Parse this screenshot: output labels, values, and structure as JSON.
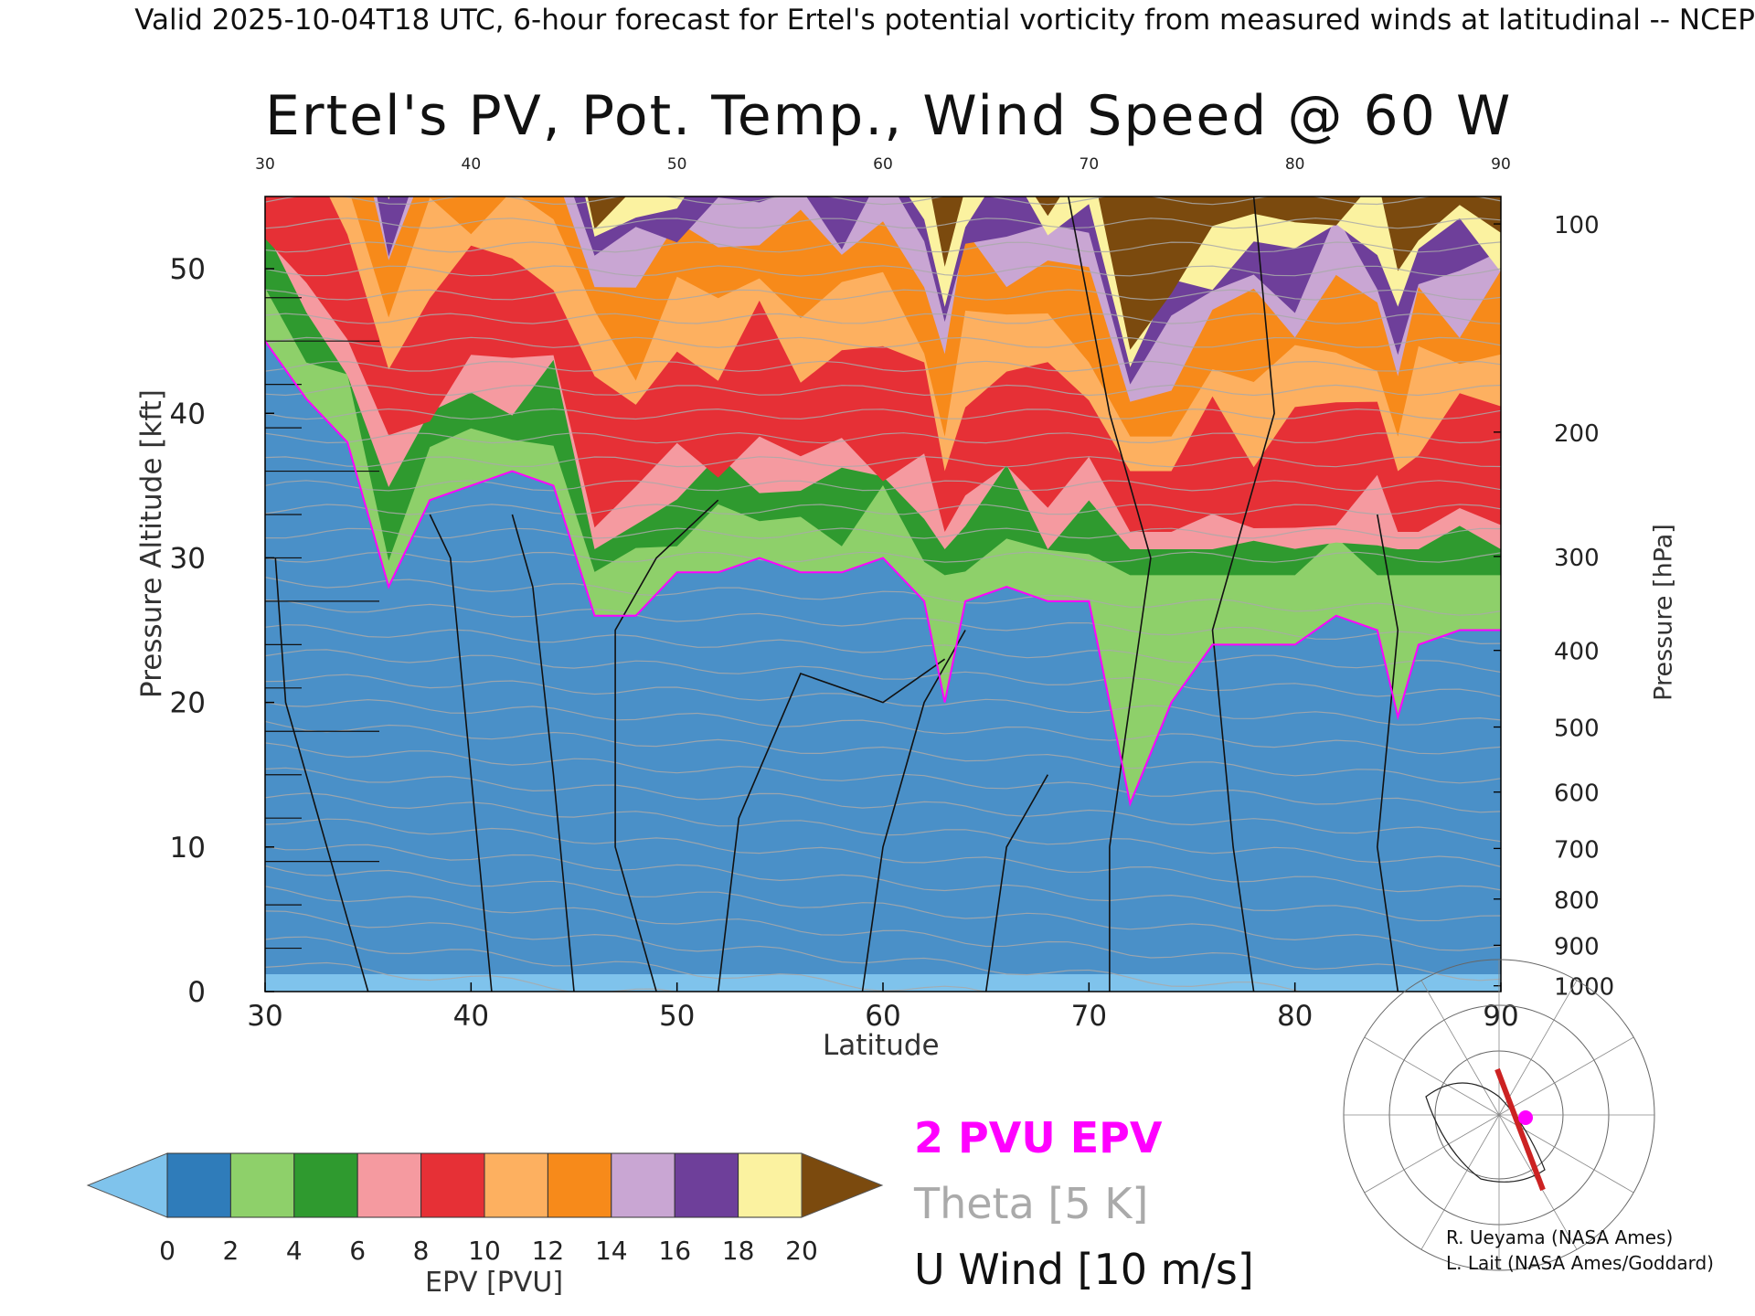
{
  "header": {
    "valid_line": "Valid 2025-10-04T18 UTC, 6-hour forecast for Ertel's potential vorticity from measured winds at latitudinal -- NCEP"
  },
  "chart_data": {
    "type": "heatmap",
    "title": "Ertel's PV, Pot. Temp., Wind Speed @ 60 W",
    "xlabel": "Latitude",
    "ylabel_left": "Pressure Altitude [kft]",
    "ylabel_right": "Pressure [hPa]",
    "xlim": [
      30,
      90
    ],
    "ylim": [
      0,
      55
    ],
    "x_ticks": [
      "30",
      "40",
      "50",
      "60",
      "70",
      "80",
      "90"
    ],
    "top_ticks": [
      "30",
      "40",
      "50",
      "60",
      "70",
      "80",
      "90"
    ],
    "y_ticks": [
      "0",
      "10",
      "20",
      "30",
      "40",
      "50"
    ],
    "pressure_ticks": [
      {
        "label": "100",
        "kft": 53.1
      },
      {
        "label": "200",
        "kft": 38.7
      },
      {
        "label": "300",
        "kft": 30.1
      },
      {
        "label": "400",
        "kft": 23.6
      },
      {
        "label": "500",
        "kft": 18.3
      },
      {
        "label": "600",
        "kft": 13.8
      },
      {
        "label": "700",
        "kft": 9.9
      },
      {
        "label": "800",
        "kft": 6.4
      },
      {
        "label": "900",
        "kft": 3.2
      },
      {
        "label": "1000",
        "kft": 0.4
      }
    ],
    "pv_2pvu_kft_by_latitude": {
      "latitude": [
        30,
        32,
        34,
        36,
        38,
        40,
        42,
        44,
        46,
        48,
        50,
        52,
        54,
        56,
        58,
        60,
        62,
        63,
        64,
        66,
        68,
        70,
        72,
        74,
        76,
        78,
        80,
        82,
        84,
        85,
        86,
        88,
        90
      ],
      "kft": [
        45,
        41,
        38,
        28,
        34,
        35,
        36,
        35,
        26,
        26,
        29,
        29,
        30,
        29,
        29,
        30,
        27,
        20,
        27,
        28,
        27,
        27,
        13,
        20,
        24,
        24,
        24,
        26,
        25,
        19,
        24,
        25,
        25
      ]
    },
    "epv_colorbar": {
      "label": "EPV [PVU]",
      "ticks": [
        "0",
        "2",
        "4",
        "6",
        "8",
        "10",
        "12",
        "14",
        "16",
        "18",
        "20"
      ],
      "colors": [
        "#7fc3ec",
        "#2f7cba",
        "#8ed06a",
        "#2f9a2f",
        "#f59aa0",
        "#e63036",
        "#fdb060",
        "#f78a1a",
        "#c9a6d3",
        "#6e3f9a",
        "#fbf2a0",
        "#7b4a0e"
      ]
    },
    "legend": [
      {
        "label": "2 PVU EPV",
        "color": "#ff00ff"
      },
      {
        "label": "Theta [5 K]",
        "color": "#aaaaaa"
      },
      {
        "label": "U Wind [10 m/s]",
        "color": "#111111"
      }
    ]
  },
  "credits": {
    "line1": "R. Ueyama (NASA Ames)",
    "line2": "L. Lait (NASA Ames/Goddard)"
  }
}
